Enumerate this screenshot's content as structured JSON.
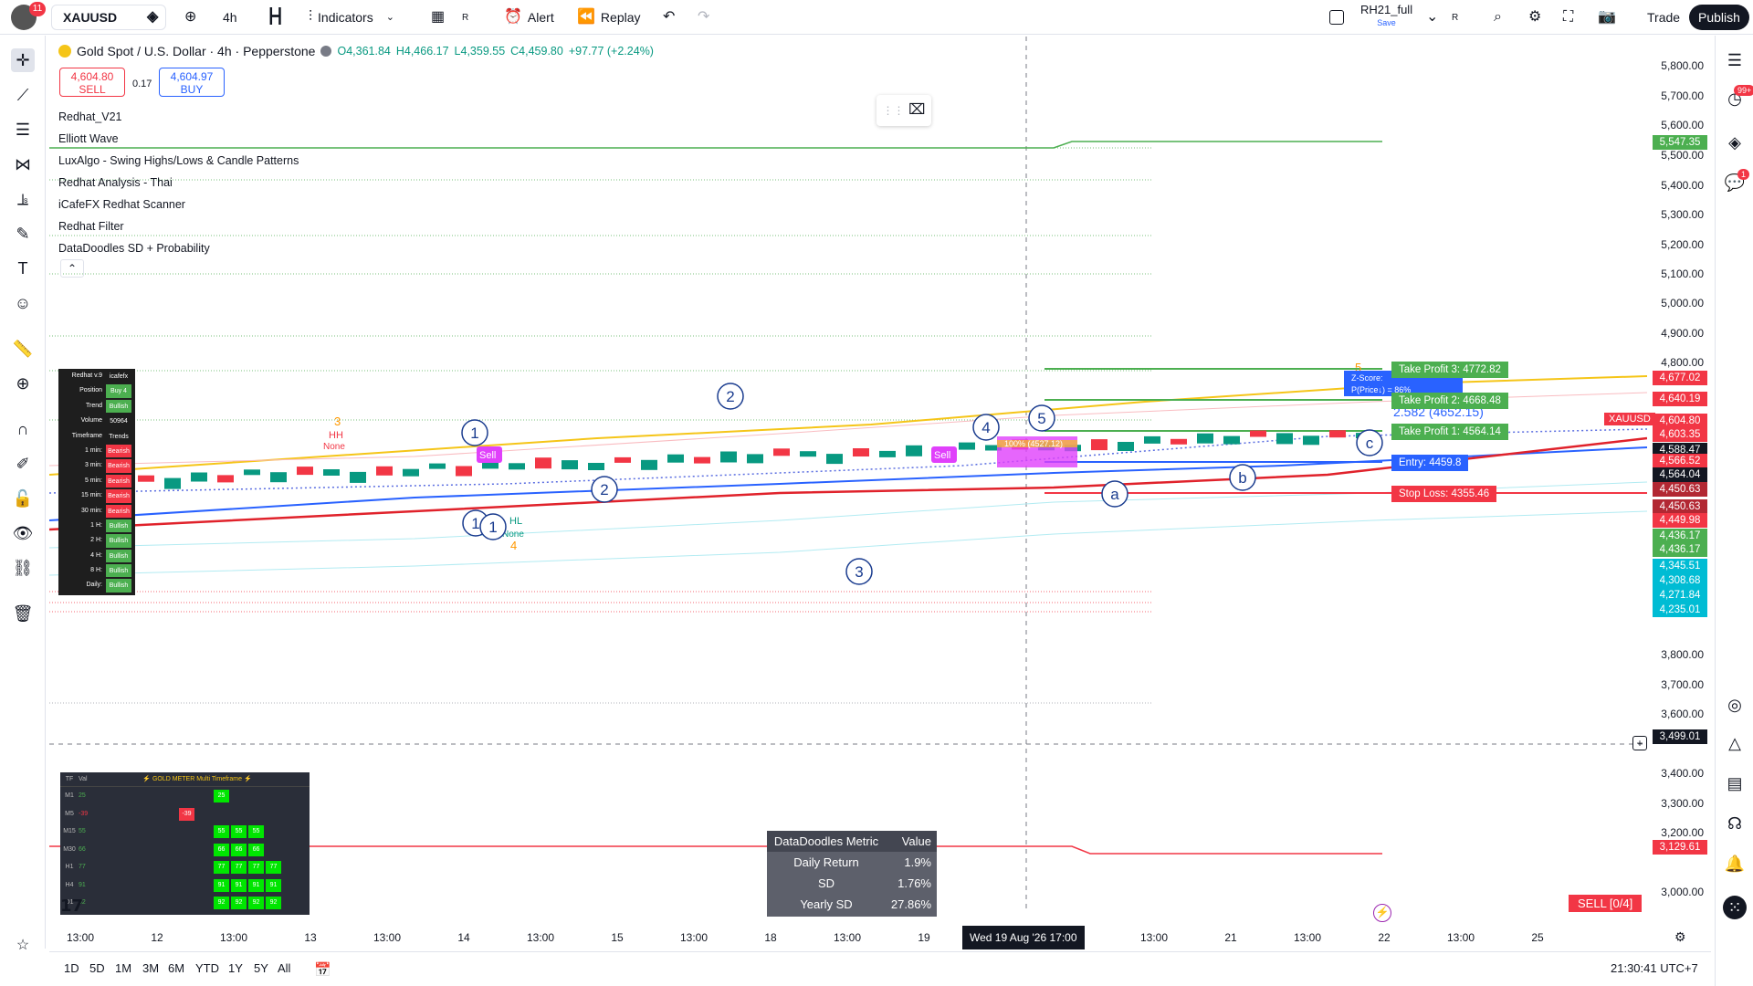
{
  "toolbar": {
    "notif": "11",
    "symbol": "XAUUSD",
    "interval": "4h",
    "indicators": "Indicators",
    "alert": "Alert",
    "replay": "Replay",
    "layout_name": "RH21_full",
    "layout_save": "Save",
    "trade": "Trade",
    "publish": "Publish",
    "r": "R"
  },
  "header": {
    "title": "Gold Spot / U.S. Dollar · 4h · Pepperstone",
    "o": "O4,361.84",
    "h": "H4,466.17",
    "l": "L4,359.55",
    "c": "C4,459.80",
    "chg": "+97.77 (+2.24%)"
  },
  "trade": {
    "sell_price": "4,604.80",
    "sell": "SELL",
    "buy_price": "4,604.97",
    "buy": "BUY",
    "spread": "0.17"
  },
  "indicators": [
    "Redhat_V21",
    "Elliott Wave",
    "LuxAlgo - Swing Highs/Lows & Candle Patterns",
    "Redhat Analysis - Thai",
    "iCafeFX Redhat Scanner",
    "Redhat Filter",
    "DataDoodles SD + Probability"
  ],
  "price_labels": [
    "5,800.00",
    "5,700.00",
    "5,600.00",
    "5,500.00",
    "5,400.00",
    "5,300.00",
    "5,200.00",
    "5,100.00",
    "5,000.00",
    "4,900.00",
    "4,800.00",
    "3,800.00",
    "3,700.00",
    "3,600.00",
    "3,400.00",
    "3,300.00",
    "3,200.00",
    "3,000.00"
  ],
  "price_tags": [
    {
      "v": "5,547.35",
      "c": "#4caf50"
    },
    {
      "v": "4,677.02",
      "c": "#f23645"
    },
    {
      "v": "4,640.19",
      "c": "#f23645"
    },
    {
      "v": "4,604.80",
      "c": "#f23645"
    },
    {
      "v": "4,603.35",
      "c": "#f23645"
    },
    {
      "v": "4,588.47",
      "c": "#131722"
    },
    {
      "v": "4,566.52",
      "c": "#f23645"
    },
    {
      "v": "4,564.04",
      "c": "#131722"
    },
    {
      "v": "4,450.63",
      "c": "#b22833"
    },
    {
      "v": "4,450.63",
      "c": "#b22833"
    },
    {
      "v": "4,449.98",
      "c": "#f23645"
    },
    {
      "v": "4,436.17",
      "c": "#4caf50"
    },
    {
      "v": "4,436.17",
      "c": "#4caf50"
    },
    {
      "v": "4,345.51",
      "c": "#00bcd4"
    },
    {
      "v": "4,308.68",
      "c": "#00bcd4"
    },
    {
      "v": "4,271.84",
      "c": "#00bcd4"
    },
    {
      "v": "4,235.01",
      "c": "#00bcd4"
    },
    {
      "v": "3,499.01",
      "c": "#131722"
    },
    {
      "v": "3,129.61",
      "c": "#f23645"
    }
  ],
  "symbol_tag": "XAUUSD",
  "time_labels": [
    "13:00",
    "12",
    "13:00",
    "13",
    "13:00",
    "14",
    "13:00",
    "15",
    "13:00",
    "18",
    "13:00",
    "19",
    "13:00",
    "21",
    "13:00",
    "22",
    "13:00",
    "25"
  ],
  "crosshair_time": "Wed 19 Aug '26   17:00",
  "ranges": [
    "1D",
    "5D",
    "1M",
    "3M",
    "6M",
    "YTD",
    "1Y",
    "5Y",
    "All"
  ],
  "clock": "21:30:41 UTC+7",
  "redhat_table": {
    "header": [
      "Redhat v.9",
      "icafefx"
    ],
    "rows": [
      [
        "Position",
        "Buy 4"
      ],
      [
        "Trend",
        "Bullish"
      ],
      [
        "Volume",
        "50964"
      ],
      [
        "Timeframe",
        "Trends"
      ],
      [
        "1 min:",
        "Bearish"
      ],
      [
        "3 min:",
        "Bearish"
      ],
      [
        "5 min:",
        "Bearish"
      ],
      [
        "15 min:",
        "Bearish"
      ],
      [
        "30 min:",
        "Bearish"
      ],
      [
        "1 H:",
        "Bullish"
      ],
      [
        "2 H:",
        "Bullish"
      ],
      [
        "4 H:",
        "Bullish"
      ],
      [
        "8 H:",
        "Bullish"
      ],
      [
        "Daily:",
        "Bullish"
      ]
    ]
  },
  "gold_meter": {
    "title": "⚡ GOLD METER Multi Timeframe ⚡",
    "cols": [
      "TF",
      "Val"
    ],
    "rows": [
      [
        "M1",
        "25"
      ],
      [
        "M5",
        "-39"
      ],
      [
        "M15",
        "55"
      ],
      [
        "M30",
        "66"
      ],
      [
        "H1",
        "77"
      ],
      [
        "H4",
        "91"
      ],
      [
        "D1",
        "92"
      ]
    ]
  },
  "metric": {
    "header": [
      "DataDoodles Metric",
      "Value"
    ],
    "rows": [
      [
        "Daily Return",
        "1.9%"
      ],
      [
        "SD",
        "1.76%"
      ],
      [
        "Yearly SD",
        "27.86%"
      ]
    ]
  },
  "targets": {
    "tp3": "Take Profit 3: 4772.82",
    "tp2": "Take Profit 2: 4668.48",
    "tp1": "Take Profit 1: 4564.14",
    "entry": "Entry: 4459.8",
    "sl": "Stop Loss: 4355.46",
    "zscore": "Z-Score:",
    "prob": "P(Price↓) = 86%",
    "zval": "2.582 (4652.15)"
  },
  "chart_text": {
    "sell1": "Sell",
    "sell2": "Sell",
    "hh": "HH",
    "hh_none": "None",
    "hh_n": "3",
    "hl": "HL",
    "hl_none": "None",
    "hl_n": "4",
    "zone": "100% (4527.12)",
    "five": "5"
  },
  "waves": [
    "1",
    "2",
    "3",
    "4",
    "5",
    "1",
    "1",
    "2",
    "a",
    "b",
    "c"
  ],
  "sell_count": "SELL  [0/4]"
}
